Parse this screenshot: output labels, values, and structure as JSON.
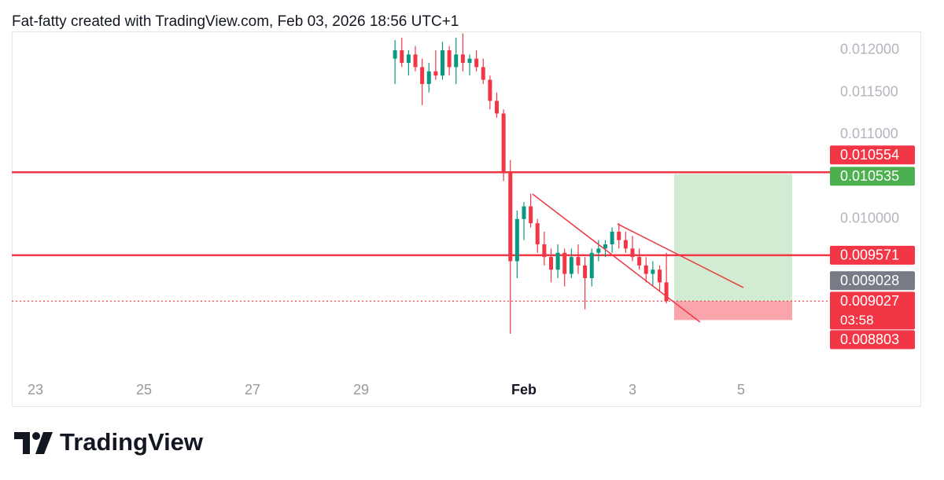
{
  "header": "Fat-fatty created with TradingView.com, Feb 03, 2026 18:56 UTC+1",
  "chart_data": {
    "type": "candlestick",
    "x": [
      29.625,
      29.75,
      29.875,
      30,
      30.125,
      30.25,
      30.375,
      30.5,
      30.625,
      30.75,
      30.875,
      31,
      31.125,
      31.25,
      31.375,
      31.5,
      31.625,
      31.75,
      31.875,
      32,
      32.125,
      32.25,
      32.375,
      32.5,
      32.625,
      32.75,
      32.875,
      33,
      33.125,
      33.25,
      33.375,
      33.5,
      33.625,
      33.75,
      33.875,
      34,
      34.125,
      34.25,
      34.375,
      34.5,
      34.625
    ],
    "open": [
      0.0119,
      0.012,
      0.01185,
      0.01195,
      0.0118,
      0.0116,
      0.01175,
      0.0117,
      0.012,
      0.0118,
      0.01195,
      0.01185,
      0.0119,
      0.0118,
      0.01165,
      0.0114,
      0.01125,
      0.01055,
      0.0095,
      0.01,
      0.01015,
      0.00995,
      0.0097,
      0.00955,
      0.0094,
      0.0096,
      0.00935,
      0.00955,
      0.00945,
      0.0093,
      0.0096,
      0.00965,
      0.0097,
      0.00985,
      0.00975,
      0.00965,
      0.00955,
      0.00945,
      0.00935,
      0.0094,
      0.00925
    ],
    "high": [
      0.01212,
      0.01215,
      0.012,
      0.01205,
      0.0119,
      0.01185,
      0.012,
      0.0121,
      0.01205,
      0.01215,
      0.0122,
      0.01195,
      0.012,
      0.0119,
      0.0117,
      0.0115,
      0.0113,
      0.0107,
      0.0101,
      0.0102,
      0.0103,
      0.01,
      0.00985,
      0.00965,
      0.0097,
      0.00965,
      0.00965,
      0.0097,
      0.00955,
      0.00965,
      0.00975,
      0.00975,
      0.0099,
      0.00995,
      0.00985,
      0.0098,
      0.00965,
      0.00955,
      0.0095,
      0.00945,
      0.0096
    ],
    "low": [
      0.0116,
      0.0118,
      0.0117,
      0.01175,
      0.01135,
      0.0115,
      0.01165,
      0.01165,
      0.0117,
      0.0116,
      0.01175,
      0.0117,
      0.01175,
      0.0116,
      0.0113,
      0.0112,
      0.01045,
      0.00864,
      0.0093,
      0.00975,
      0.0099,
      0.0096,
      0.00945,
      0.00925,
      0.0093,
      0.0092,
      0.0093,
      0.00935,
      0.00893,
      0.0092,
      0.0095,
      0.00955,
      0.0096,
      0.00965,
      0.0096,
      0.0095,
      0.0094,
      0.00925,
      0.0092,
      0.00915,
      0.009
    ],
    "close": [
      0.012,
      0.01185,
      0.01195,
      0.0118,
      0.0116,
      0.01175,
      0.0117,
      0.012,
      0.0118,
      0.01195,
      0.01185,
      0.0119,
      0.0118,
      0.01165,
      0.0114,
      0.01125,
      0.01055,
      0.0095,
      0.01,
      0.01015,
      0.00995,
      0.0097,
      0.00955,
      0.0094,
      0.0096,
      0.00935,
      0.00955,
      0.00945,
      0.0093,
      0.0096,
      0.00965,
      0.0097,
      0.00985,
      0.00975,
      0.00965,
      0.00955,
      0.00945,
      0.00935,
      0.0094,
      0.00925,
      0.009027
    ],
    "up_color": "#089981",
    "down_color": "#f23645",
    "xlim": [
      22.565,
      37.638
    ],
    "xticks": [
      23,
      25,
      27,
      29,
      {
        "value": 32,
        "label": "Feb"
      },
      {
        "value": 34,
        "label": "3"
      },
      {
        "value": 36,
        "label": "5"
      }
    ],
    "ylim": [
      0.008127,
      0.012223
    ],
    "yticks": [
      {
        "value": 0.01,
        "label": "0.010000"
      },
      {
        "value": 0.011,
        "label": "0.011000"
      },
      {
        "value": 0.0115,
        "label": "0.011500"
      },
      {
        "value": 0.012,
        "label": "0.012000"
      }
    ],
    "horizontal_lines": [
      {
        "value": 0.010554,
        "color": "#f23645"
      },
      {
        "value": 0.009571,
        "color": "#f23645"
      }
    ],
    "trend_lines": [
      {
        "x": [
          32.159,
          35.246
        ],
        "y": [
          0.010296,
          0.008778
        ]
      },
      {
        "x": [
          33.725,
          36.043
        ],
        "y": [
          0.009942,
          0.009188
        ]
      }
    ],
    "trend_color": "#f23645",
    "position": {
      "x": [
        34.768,
        36.942
      ],
      "entry": 0.009027,
      "target": 0.010535,
      "stop": 0.008803
    },
    "current_price": 0.009027,
    "price_tags": [
      {
        "value": 0.010554,
        "color": "#f23645"
      },
      {
        "value": 0.010535,
        "color": "#4caf50"
      },
      {
        "value": 0.009571,
        "color": "#f23645"
      },
      {
        "value": 0.009028,
        "color": "#787b86"
      },
      {
        "value": 0.009027,
        "color": "#f23645",
        "countdown": "03:58"
      },
      {
        "value": 0.008803,
        "color": "#f23645"
      }
    ]
  },
  "footer": {
    "brand": "TradingView"
  }
}
